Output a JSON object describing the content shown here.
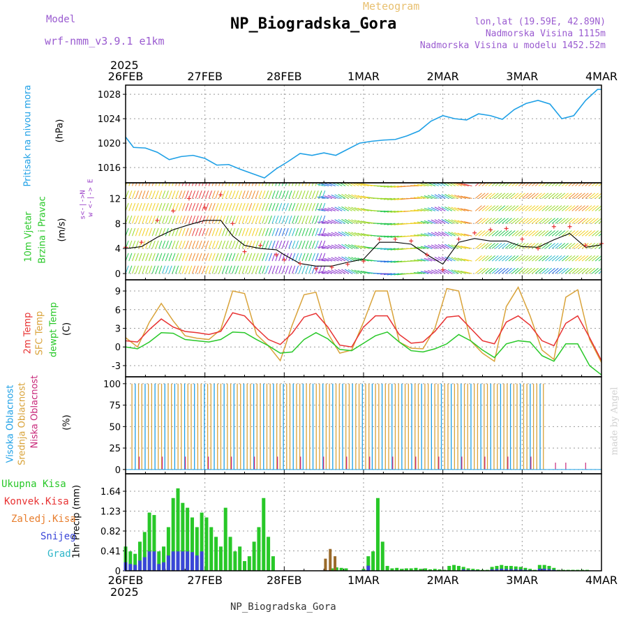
{
  "header": {
    "model_label": "Model",
    "model_name": "wrf-nmm_v3.9.1  e1km",
    "title": "NP_Biogradska_Gora",
    "subtitle": "Meteogram",
    "coords": "lon,lat (19.59E, 42.89N)",
    "elevation": "Nadmorska Visina 1115m",
    "model_elevation": "Nadmorska Visina u modelu 1452.52m",
    "year_top": "2025",
    "year_bottom": "2025",
    "footer_station": "NP_Biogradska_Gora",
    "credit": "made by Angel"
  },
  "colors": {
    "pressure": "#1ea0e6",
    "temp2m": "#e83232",
    "sfc": "#d9a33a",
    "dewpt": "#28c828",
    "total": "#28c828",
    "conv": "#e83232",
    "frozen": "#e87e2e",
    "snow": "#3a46d8",
    "graup": "#2eb6c8",
    "high": "#1ea0e6",
    "mid": "#d9a33a",
    "low": "#c8287a",
    "wind_mag": "#9a40c8"
  },
  "panel_labels": {
    "pressure": [
      "Pritisak na nivou mora",
      "(hPa)"
    ],
    "wind": [
      "10m Vjetar",
      "Brzina i Pravac",
      "(m/s)"
    ],
    "wind_dir_a": "w <-|-> E",
    "wind_dir_b": "s<-|->N",
    "temp": [
      "2m Temp",
      "SFC Temp",
      "dewpt Temp",
      "(C)"
    ],
    "cloud": [
      "Visoka Oblacnost",
      "Srednja Oblacnost",
      "Niska Oblacnost",
      "(%)"
    ],
    "precip_unit": "1hr Precip (mm)",
    "precip_legend": [
      "Ukupna Kisa",
      "Konvek.Kisa",
      "Zaledj.Kisa",
      "Snijeg",
      "Grad"
    ]
  },
  "chart_data": [
    {
      "type": "line",
      "name": "pressure",
      "x_days": [
        0,
        0.1,
        0.25,
        0.4,
        0.55,
        0.7,
        0.85,
        1.0,
        1.15,
        1.3,
        1.45,
        1.6,
        1.75,
        1.9,
        2.05,
        2.2,
        2.35,
        2.5,
        2.65,
        2.8,
        2.95,
        3.1,
        3.25,
        3.4,
        3.55,
        3.7,
        3.85,
        4.0,
        4.15,
        4.3,
        4.45,
        4.6,
        4.75,
        4.9,
        5.05,
        5.2,
        5.35,
        5.5,
        5.65,
        5.8,
        5.95,
        6.0
      ],
      "y": [
        1021,
        1019.3,
        1019.2,
        1018.5,
        1017.3,
        1017.8,
        1018,
        1017.5,
        1016.4,
        1016.5,
        1015.7,
        1015,
        1014.3,
        1015.8,
        1017,
        1018.3,
        1018,
        1018.4,
        1018,
        1019,
        1020,
        1020.3,
        1020.5,
        1020.6,
        1021.2,
        1022,
        1023.6,
        1024.5,
        1024,
        1023.8,
        1024.8,
        1024.5,
        1023.9,
        1025.5,
        1026.5,
        1027,
        1026.4,
        1024,
        1024.5,
        1027,
        1028.8,
        1028.8
      ],
      "yticks": [
        1016,
        1020,
        1024,
        1028
      ],
      "ylim": [
        1013.5,
        1029.5
      ]
    },
    {
      "type": "line",
      "name": "wind",
      "yticks": [
        0,
        4,
        8,
        12
      ],
      "ylim": [
        -1,
        14.5
      ],
      "x_days": [
        0,
        0.2,
        0.4,
        0.6,
        0.8,
        1.0,
        1.2,
        1.35,
        1.5,
        1.7,
        1.9,
        2.0,
        2.2,
        2.4,
        2.6,
        2.8,
        3.0,
        3.2,
        3.4,
        3.6,
        3.8,
        4.0,
        4.2,
        4.4,
        4.6,
        4.8,
        5.0,
        5.2,
        5.4,
        5.6,
        5.8,
        6.0
      ],
      "speed": [
        4,
        4.3,
        5.8,
        7,
        7.8,
        8.5,
        8.5,
        6,
        4.5,
        4,
        3.8,
        3,
        1.6,
        1.2,
        1.2,
        1.8,
        2.3,
        5,
        5,
        4.7,
        3,
        1.5,
        5,
        5.6,
        5.2,
        5.2,
        4.3,
        4.2,
        5.4,
        6.4,
        4.2,
        4.6
      ],
      "speed_marker": [
        4.2,
        5,
        8.5,
        10,
        12,
        10.5,
        12.6,
        8,
        3.5,
        4.5,
        3,
        2.2,
        1.6,
        0.8,
        1,
        1.5,
        2,
        5.5,
        5.5,
        5.2,
        3,
        0.6,
        5.5,
        6.5,
        7,
        7.2,
        5.5,
        4,
        7.5,
        7.5,
        4.5,
        4.8
      ]
    },
    {
      "type": "line",
      "name": "temperature",
      "yticks": [
        -3,
        0,
        3,
        6,
        9
      ],
      "ylim": [
        -4.8,
        10.8
      ],
      "x_days": [
        0,
        0.15,
        0.3,
        0.45,
        0.6,
        0.75,
        0.9,
        1.05,
        1.2,
        1.35,
        1.5,
        1.65,
        1.8,
        1.95,
        2.1,
        2.25,
        2.4,
        2.55,
        2.7,
        2.85,
        3.0,
        3.15,
        3.3,
        3.45,
        3.6,
        3.75,
        3.9,
        4.05,
        4.2,
        4.35,
        4.5,
        4.65,
        4.8,
        4.95,
        5.1,
        5.25,
        5.4,
        5.55,
        5.7,
        5.85,
        6.0
      ],
      "t2m": [
        1,
        0.8,
        2.8,
        4.5,
        3.2,
        2.5,
        2.3,
        2,
        2.5,
        5.5,
        5,
        3,
        1.2,
        0.4,
        2.2,
        4.8,
        5.4,
        3.2,
        0.3,
        0,
        3.2,
        5,
        5,
        2,
        0.6,
        0.8,
        2.5,
        4.8,
        5,
        3,
        1,
        0.5,
        4,
        5,
        3.5,
        1,
        0.2,
        3.8,
        5,
        1.5,
        -2.2
      ],
      "sfc": [
        1.5,
        0,
        4,
        7,
        4.2,
        1.8,
        1.4,
        1.2,
        2.8,
        9,
        8.6,
        2,
        0.2,
        -2.2,
        3.5,
        8.4,
        8.8,
        2.2,
        -1,
        -0.5,
        4,
        9,
        9,
        0.8,
        -0.2,
        -0.3,
        3,
        9.4,
        9,
        1,
        -1,
        -2.3,
        6.5,
        9.6,
        5,
        -0.5,
        -2,
        8,
        9.2,
        1.2,
        -2.5
      ],
      "dewpt": [
        0,
        -0.3,
        0.8,
        2.3,
        2.2,
        1.2,
        1,
        0.8,
        1.2,
        2.4,
        2.3,
        1.2,
        0.2,
        -1,
        -0.8,
        1.2,
        2.3,
        1.3,
        -0.4,
        -0.6,
        0.6,
        1.8,
        2.4,
        0.8,
        -0.6,
        -0.8,
        -0.3,
        0.5,
        2,
        1,
        -0.5,
        -1.7,
        0.5,
        1,
        0.8,
        -1.4,
        -2.3,
        0.5,
        0.5,
        -3,
        -4.5
      ]
    },
    {
      "type": "bar",
      "name": "cloud_cover",
      "yticks": [
        0,
        25,
        50,
        75,
        100
      ],
      "ylim": [
        -5,
        108
      ]
    },
    {
      "type": "bar",
      "name": "precipitation",
      "yticks": [
        "0",
        "0.41",
        "0.82",
        "1.23",
        "1.64"
      ],
      "ylim": [
        0,
        2.0
      ],
      "bars_days": [
        0.0,
        0.06,
        0.12,
        0.18,
        0.24,
        0.3,
        0.36,
        0.42,
        0.48,
        0.54,
        0.6,
        0.66,
        0.72,
        0.78,
        0.84,
        0.9,
        0.96,
        1.02,
        1.08,
        1.14,
        1.2,
        1.26,
        1.32,
        1.38,
        1.44,
        1.5,
        1.56,
        1.62,
        1.68,
        1.74,
        1.8,
        1.86,
        2.6,
        2.66,
        2.72,
        2.78,
        3.0,
        3.06,
        3.12,
        3.18,
        3.24,
        3.3,
        3.36,
        3.42,
        3.48,
        3.54,
        3.6,
        3.66,
        3.72,
        3.78,
        3.84,
        3.9,
        3.96,
        4.02,
        4.08,
        4.14,
        4.2,
        4.26,
        4.32,
        4.38,
        4.44,
        4.5,
        4.56,
        4.62,
        4.68,
        4.74,
        4.8,
        4.86,
        4.92,
        4.98,
        5.04,
        5.1,
        5.16,
        5.22,
        5.28,
        5.34,
        5.4,
        5.46,
        5.52,
        5.58,
        5.64,
        5.7,
        5.76,
        5.82
      ],
      "total": [
        0.5,
        0.4,
        0.35,
        0.6,
        0.8,
        1.2,
        1.15,
        0.4,
        0.5,
        0.9,
        1.5,
        1.7,
        1.4,
        1.3,
        1.1,
        0.9,
        1.2,
        1.1,
        0.9,
        0.7,
        0.5,
        1.3,
        0.7,
        0.4,
        0.5,
        0.2,
        0.3,
        0.6,
        0.9,
        1.5,
        0.7,
        0.3,
        0.05,
        0.07,
        0.06,
        0.05,
        0.04,
        0.3,
        0.4,
        1.5,
        0.6,
        0.1,
        0.05,
        0.06,
        0.04,
        0.05,
        0.05,
        0.06,
        0.04,
        0.05,
        0.03,
        0.04,
        0.03,
        0.02,
        0.1,
        0.12,
        0.1,
        0.08,
        0.05,
        0.04,
        0.03,
        0.02,
        0.02,
        0.08,
        0.1,
        0.12,
        0.1,
        0.1,
        0.09,
        0.08,
        0.06,
        0.04,
        0.02,
        0.12,
        0.12,
        0.1,
        0.06,
        0.02,
        0.02,
        0.02,
        0.02,
        0.02,
        0.02,
        0.02
      ]
    }
  ]
}
